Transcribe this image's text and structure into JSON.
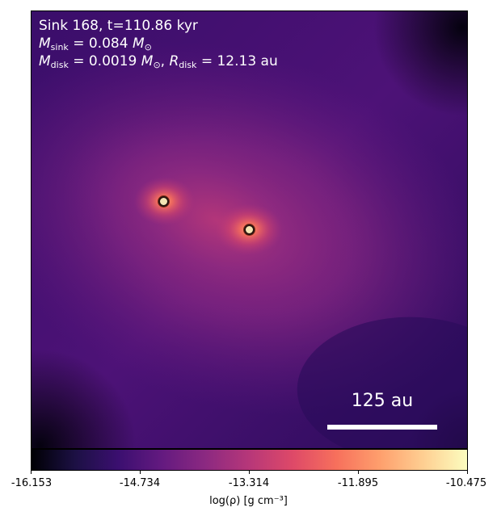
{
  "annotation": {
    "line1": "Sink 168, t=110.86 kyr",
    "msink_symbol": "M",
    "msink_sub": "sink",
    "msink_value": " = 0.084 ",
    "msun_symbol": "M",
    "msun_sub": "⊙",
    "mdisk_symbol": "M",
    "mdisk_sub": "disk",
    "mdisk_value": " = 0.0019 ",
    "rdisk_sep": ", ",
    "rdisk_symbol": "R",
    "rdisk_sub": "disk",
    "rdisk_value": " = 12.13 au"
  },
  "scale_bar": {
    "label": "125 au"
  },
  "sinks": [
    {
      "name": "sink-primary"
    },
    {
      "name": "sink-secondary"
    }
  ],
  "colorbar": {
    "colormap": "magma",
    "ticks": [
      "-16.153",
      "-14.734",
      "-13.314",
      "-11.895",
      "-10.475"
    ],
    "label": "log(ρ) [g cm⁻³]"
  }
}
